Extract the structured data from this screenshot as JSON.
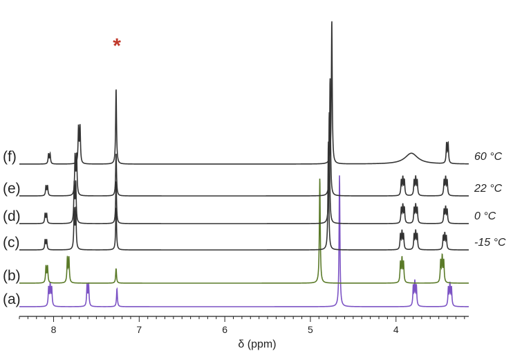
{
  "chart_data": {
    "type": "line",
    "title": "",
    "xlabel": "δ (ppm)",
    "ylabel": "",
    "xlim": [
      8.4,
      3.15
    ],
    "x_reversed": true,
    "xticks": [
      8,
      7,
      6,
      5,
      4
    ],
    "xtick_labels": [
      "8",
      "7",
      "6",
      "5",
      "4"
    ],
    "grid": false,
    "legend": "none",
    "annotation": {
      "text": "*",
      "x": 7.26,
      "color": "#c0392b"
    },
    "series": [
      {
        "label": "(a)",
        "temperature": "",
        "color": "#7b52c4",
        "peaks": [
          {
            "x": 8.04,
            "h": 0.55,
            "multiplet": 3
          },
          {
            "x": 7.6,
            "h": 0.65,
            "multiplet": 2
          },
          {
            "x": 7.26,
            "h": 0.55,
            "multiplet": 1
          },
          {
            "x": 4.66,
            "h": 4.0,
            "multiplet": 1
          },
          {
            "x": 3.78,
            "h": 0.6,
            "multiplet": 3
          },
          {
            "x": 3.37,
            "h": 0.55,
            "multiplet": 3
          }
        ]
      },
      {
        "label": "(b)",
        "temperature": "",
        "color": "#5a7a28",
        "peaks": [
          {
            "x": 8.08,
            "h": 0.5,
            "multiplet": 2
          },
          {
            "x": 7.83,
            "h": 0.75,
            "multiplet": 2
          },
          {
            "x": 7.27,
            "h": 0.45,
            "multiplet": 1
          },
          {
            "x": 4.89,
            "h": 3.2,
            "multiplet": 1
          },
          {
            "x": 3.93,
            "h": 0.6,
            "multiplet": 3
          },
          {
            "x": 3.46,
            "h": 0.65,
            "multiplet": 3
          }
        ]
      },
      {
        "label": "(c)",
        "temperature": "-15 °C",
        "color": "#333333",
        "peaks": [
          {
            "x": 8.09,
            "h": 0.3,
            "multiplet": 2
          },
          {
            "x": 7.75,
            "h": 1.2,
            "multiplet": 2
          },
          {
            "x": 7.27,
            "h": 1.3,
            "multiplet": 1
          },
          {
            "x": 4.79,
            "h": 3.3,
            "multiplet": 1
          },
          {
            "x": 3.93,
            "h": 0.45,
            "multiplet": 3
          },
          {
            "x": 3.77,
            "h": 0.45,
            "multiplet": 3
          },
          {
            "x": 3.43,
            "h": 0.4,
            "multiplet": 3
          }
        ]
      },
      {
        "label": "(d)",
        "temperature": "0 °C",
        "color": "#333333",
        "peaks": [
          {
            "x": 8.09,
            "h": 0.3,
            "multiplet": 2
          },
          {
            "x": 7.75,
            "h": 1.2,
            "multiplet": 2
          },
          {
            "x": 7.27,
            "h": 1.3,
            "multiplet": 1
          },
          {
            "x": 4.78,
            "h": 3.4,
            "multiplet": 1
          },
          {
            "x": 3.92,
            "h": 0.45,
            "multiplet": 3
          },
          {
            "x": 3.77,
            "h": 0.45,
            "multiplet": 3
          },
          {
            "x": 3.42,
            "h": 0.4,
            "multiplet": 3
          }
        ]
      },
      {
        "label": "(e)",
        "temperature": "22 °C",
        "color": "#333333",
        "peaks": [
          {
            "x": 8.08,
            "h": 0.3,
            "multiplet": 2
          },
          {
            "x": 7.74,
            "h": 1.2,
            "multiplet": 2
          },
          {
            "x": 7.27,
            "h": 1.3,
            "multiplet": 1
          },
          {
            "x": 4.77,
            "h": 3.6,
            "multiplet": 1
          },
          {
            "x": 3.92,
            "h": 0.45,
            "multiplet": 3
          },
          {
            "x": 3.77,
            "h": 0.45,
            "multiplet": 3
          },
          {
            "x": 3.42,
            "h": 0.45,
            "multiplet": 3
          }
        ]
      },
      {
        "label": "(f)",
        "temperature": "60 °C",
        "color": "#333333",
        "peaks": [
          {
            "x": 8.05,
            "h": 0.3,
            "multiplet": 2
          },
          {
            "x": 7.7,
            "h": 1.1,
            "multiplet": 2
          },
          {
            "x": 7.27,
            "h": 2.3,
            "multiplet": 1
          },
          {
            "x": 4.75,
            "h": 4.4,
            "multiplet": 1
          },
          {
            "x": 3.82,
            "h": 0.28,
            "multiplet": 1,
            "broad": true
          },
          {
            "x": 3.4,
            "h": 0.6,
            "multiplet": 2
          }
        ]
      }
    ]
  }
}
